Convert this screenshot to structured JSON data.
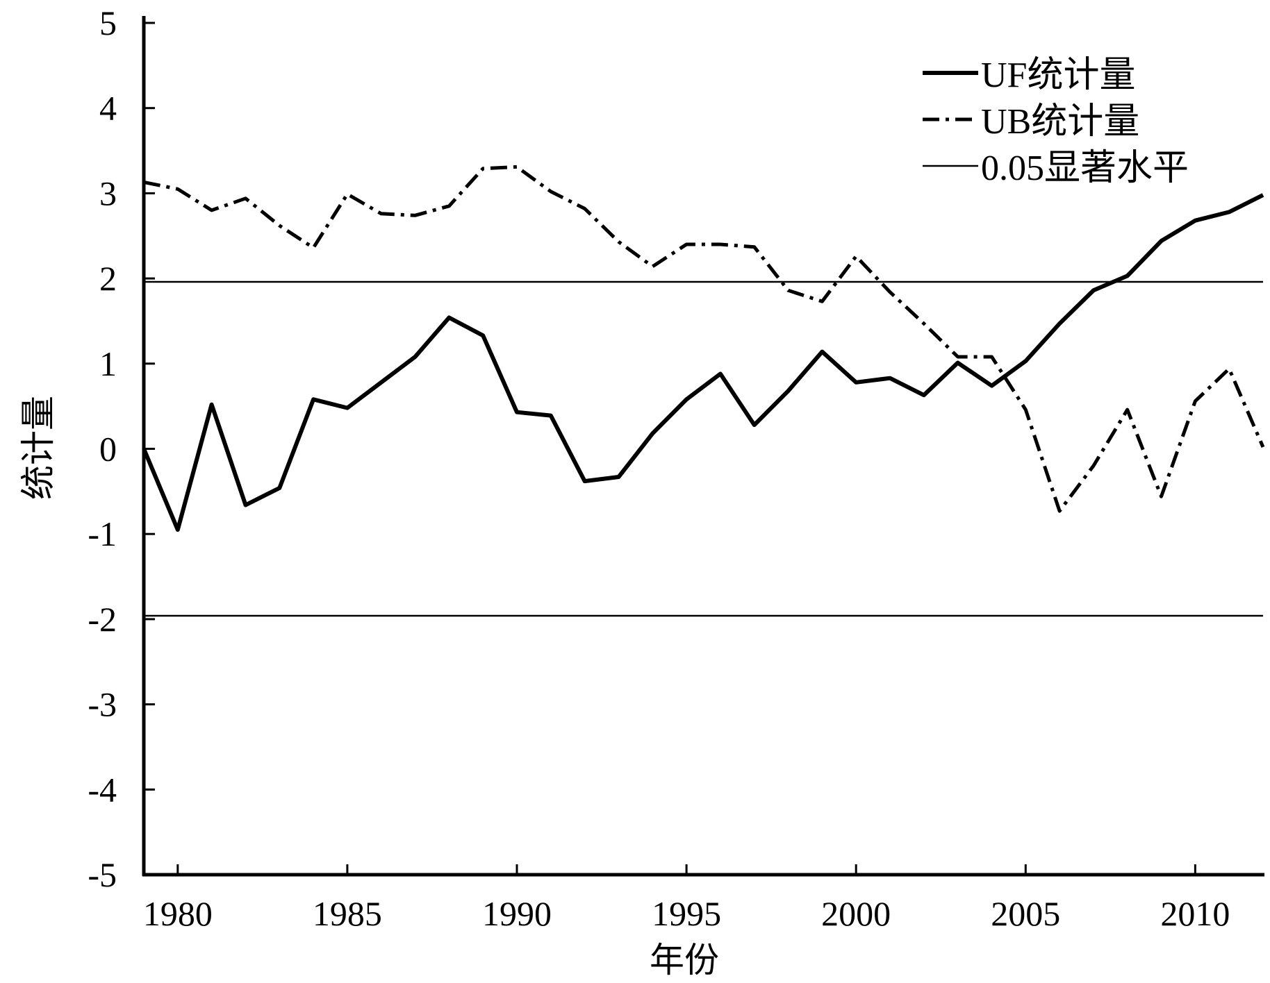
{
  "chart_data": {
    "type": "line",
    "title": "",
    "xlabel": "年份",
    "ylabel": "统计量",
    "xlim": [
      1979,
      2012
    ],
    "ylim": [
      -5,
      5
    ],
    "x_ticks": [
      "1980",
      "1985",
      "1990",
      "1995",
      "2000",
      "2005",
      "2010"
    ],
    "y_ticks": [
      "5",
      "4",
      "3",
      "2",
      "1",
      "0",
      "-1",
      "-2",
      "-3",
      "-4",
      "-5"
    ],
    "grid": false,
    "legend_position": "top-right",
    "x": [
      1979,
      1980,
      1981,
      1982,
      1983,
      1984,
      1985,
      1986,
      1987,
      1988,
      1989,
      1990,
      1991,
      1992,
      1993,
      1994,
      1995,
      1996,
      1997,
      1998,
      1999,
      2000,
      2001,
      2002,
      2003,
      2004,
      2005,
      2006,
      2007,
      2008,
      2009,
      2010,
      2011,
      2012
    ],
    "series": [
      {
        "name": "UF统计量",
        "style": "solid-thick",
        "values": [
          0.0,
          -0.95,
          0.52,
          -0.66,
          -0.46,
          0.58,
          0.48,
          0.78,
          1.08,
          1.54,
          1.33,
          0.43,
          0.39,
          -0.38,
          -0.33,
          0.18,
          0.58,
          0.88,
          0.28,
          0.68,
          1.14,
          0.78,
          0.83,
          0.63,
          1.01,
          0.74,
          1.03,
          1.47,
          1.86,
          2.03,
          2.44,
          2.68,
          2.78,
          2.98
        ]
      },
      {
        "name": "UB统计量",
        "style": "dash-dot",
        "values": [
          3.13,
          3.05,
          2.8,
          2.94,
          2.62,
          2.36,
          2.99,
          2.76,
          2.74,
          2.85,
          3.29,
          3.31,
          3.02,
          2.82,
          2.43,
          2.14,
          2.4,
          2.4,
          2.37,
          1.86,
          1.73,
          2.26,
          1.84,
          1.47,
          1.08,
          1.08,
          0.46,
          -0.73,
          -0.2,
          0.46,
          -0.56,
          0.56,
          0.94,
          0.02
        ]
      },
      {
        "name": "0.05显著水平",
        "style": "thin",
        "values_pos": 1.96,
        "values_neg": -1.96
      }
    ]
  },
  "legend": {
    "items": [
      {
        "label": "UF统计量"
      },
      {
        "label": "UB统计量"
      },
      {
        "label": "0.05显著水平"
      }
    ]
  },
  "colors": {
    "axis": "#000000",
    "series": "#000000",
    "background": "#ffffff"
  }
}
